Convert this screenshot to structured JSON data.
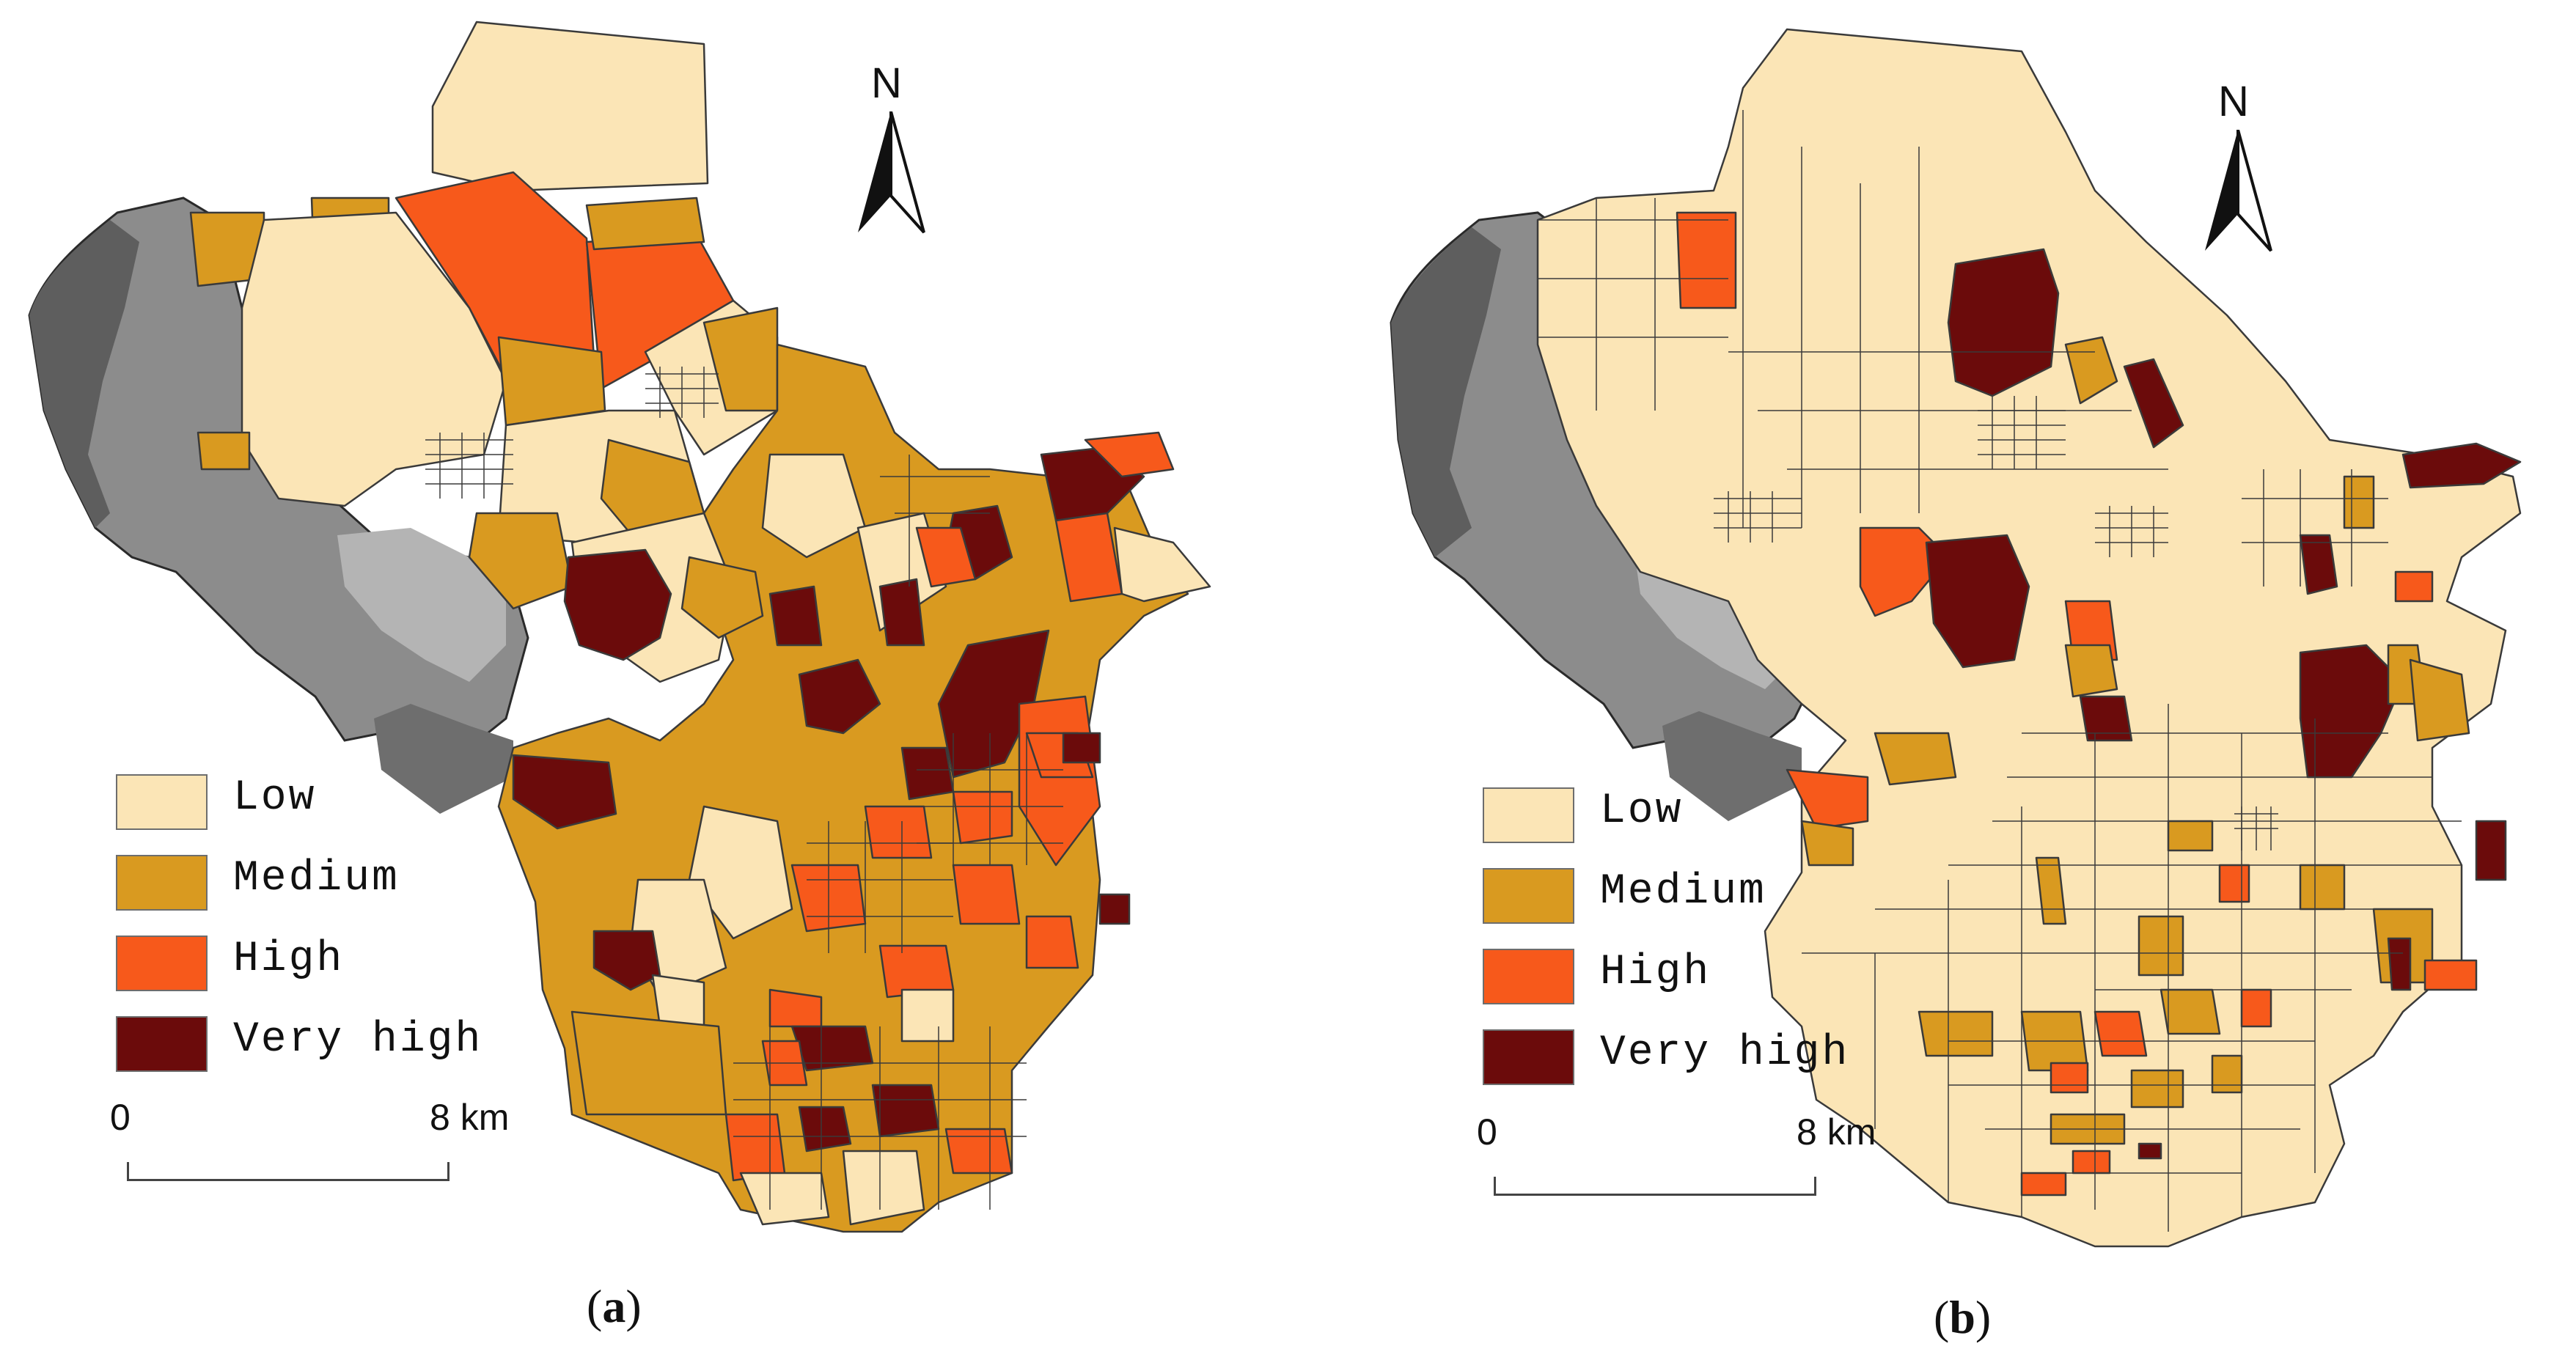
{
  "legend_colors": {
    "low": "#fbe5b6",
    "medium": "#d99a20",
    "high": "#f7591b",
    "very_high": "#6b0b0b",
    "terrain": "#9a9a9a",
    "boundary": "#3a3a3a"
  },
  "panels": [
    {
      "id": "a",
      "label_open": "(",
      "label_letter": "a",
      "label_close": ")",
      "legend": [
        {
          "key": "low",
          "label": "Low"
        },
        {
          "key": "medium",
          "label": "Medium"
        },
        {
          "key": "high",
          "label": "High"
        },
        {
          "key": "very_high",
          "label": "Very high"
        }
      ],
      "scale": {
        "start": "0",
        "end": "8 km"
      },
      "north": "N"
    },
    {
      "id": "b",
      "label_open": "(",
      "label_letter": "b",
      "label_close": ")",
      "legend": [
        {
          "key": "low",
          "label": "Low"
        },
        {
          "key": "medium",
          "label": "Medium"
        },
        {
          "key": "high",
          "label": "High"
        },
        {
          "key": "very_high",
          "label": "Very high"
        }
      ],
      "scale": {
        "start": "0",
        "end": "8 km"
      },
      "north": "N"
    }
  ]
}
